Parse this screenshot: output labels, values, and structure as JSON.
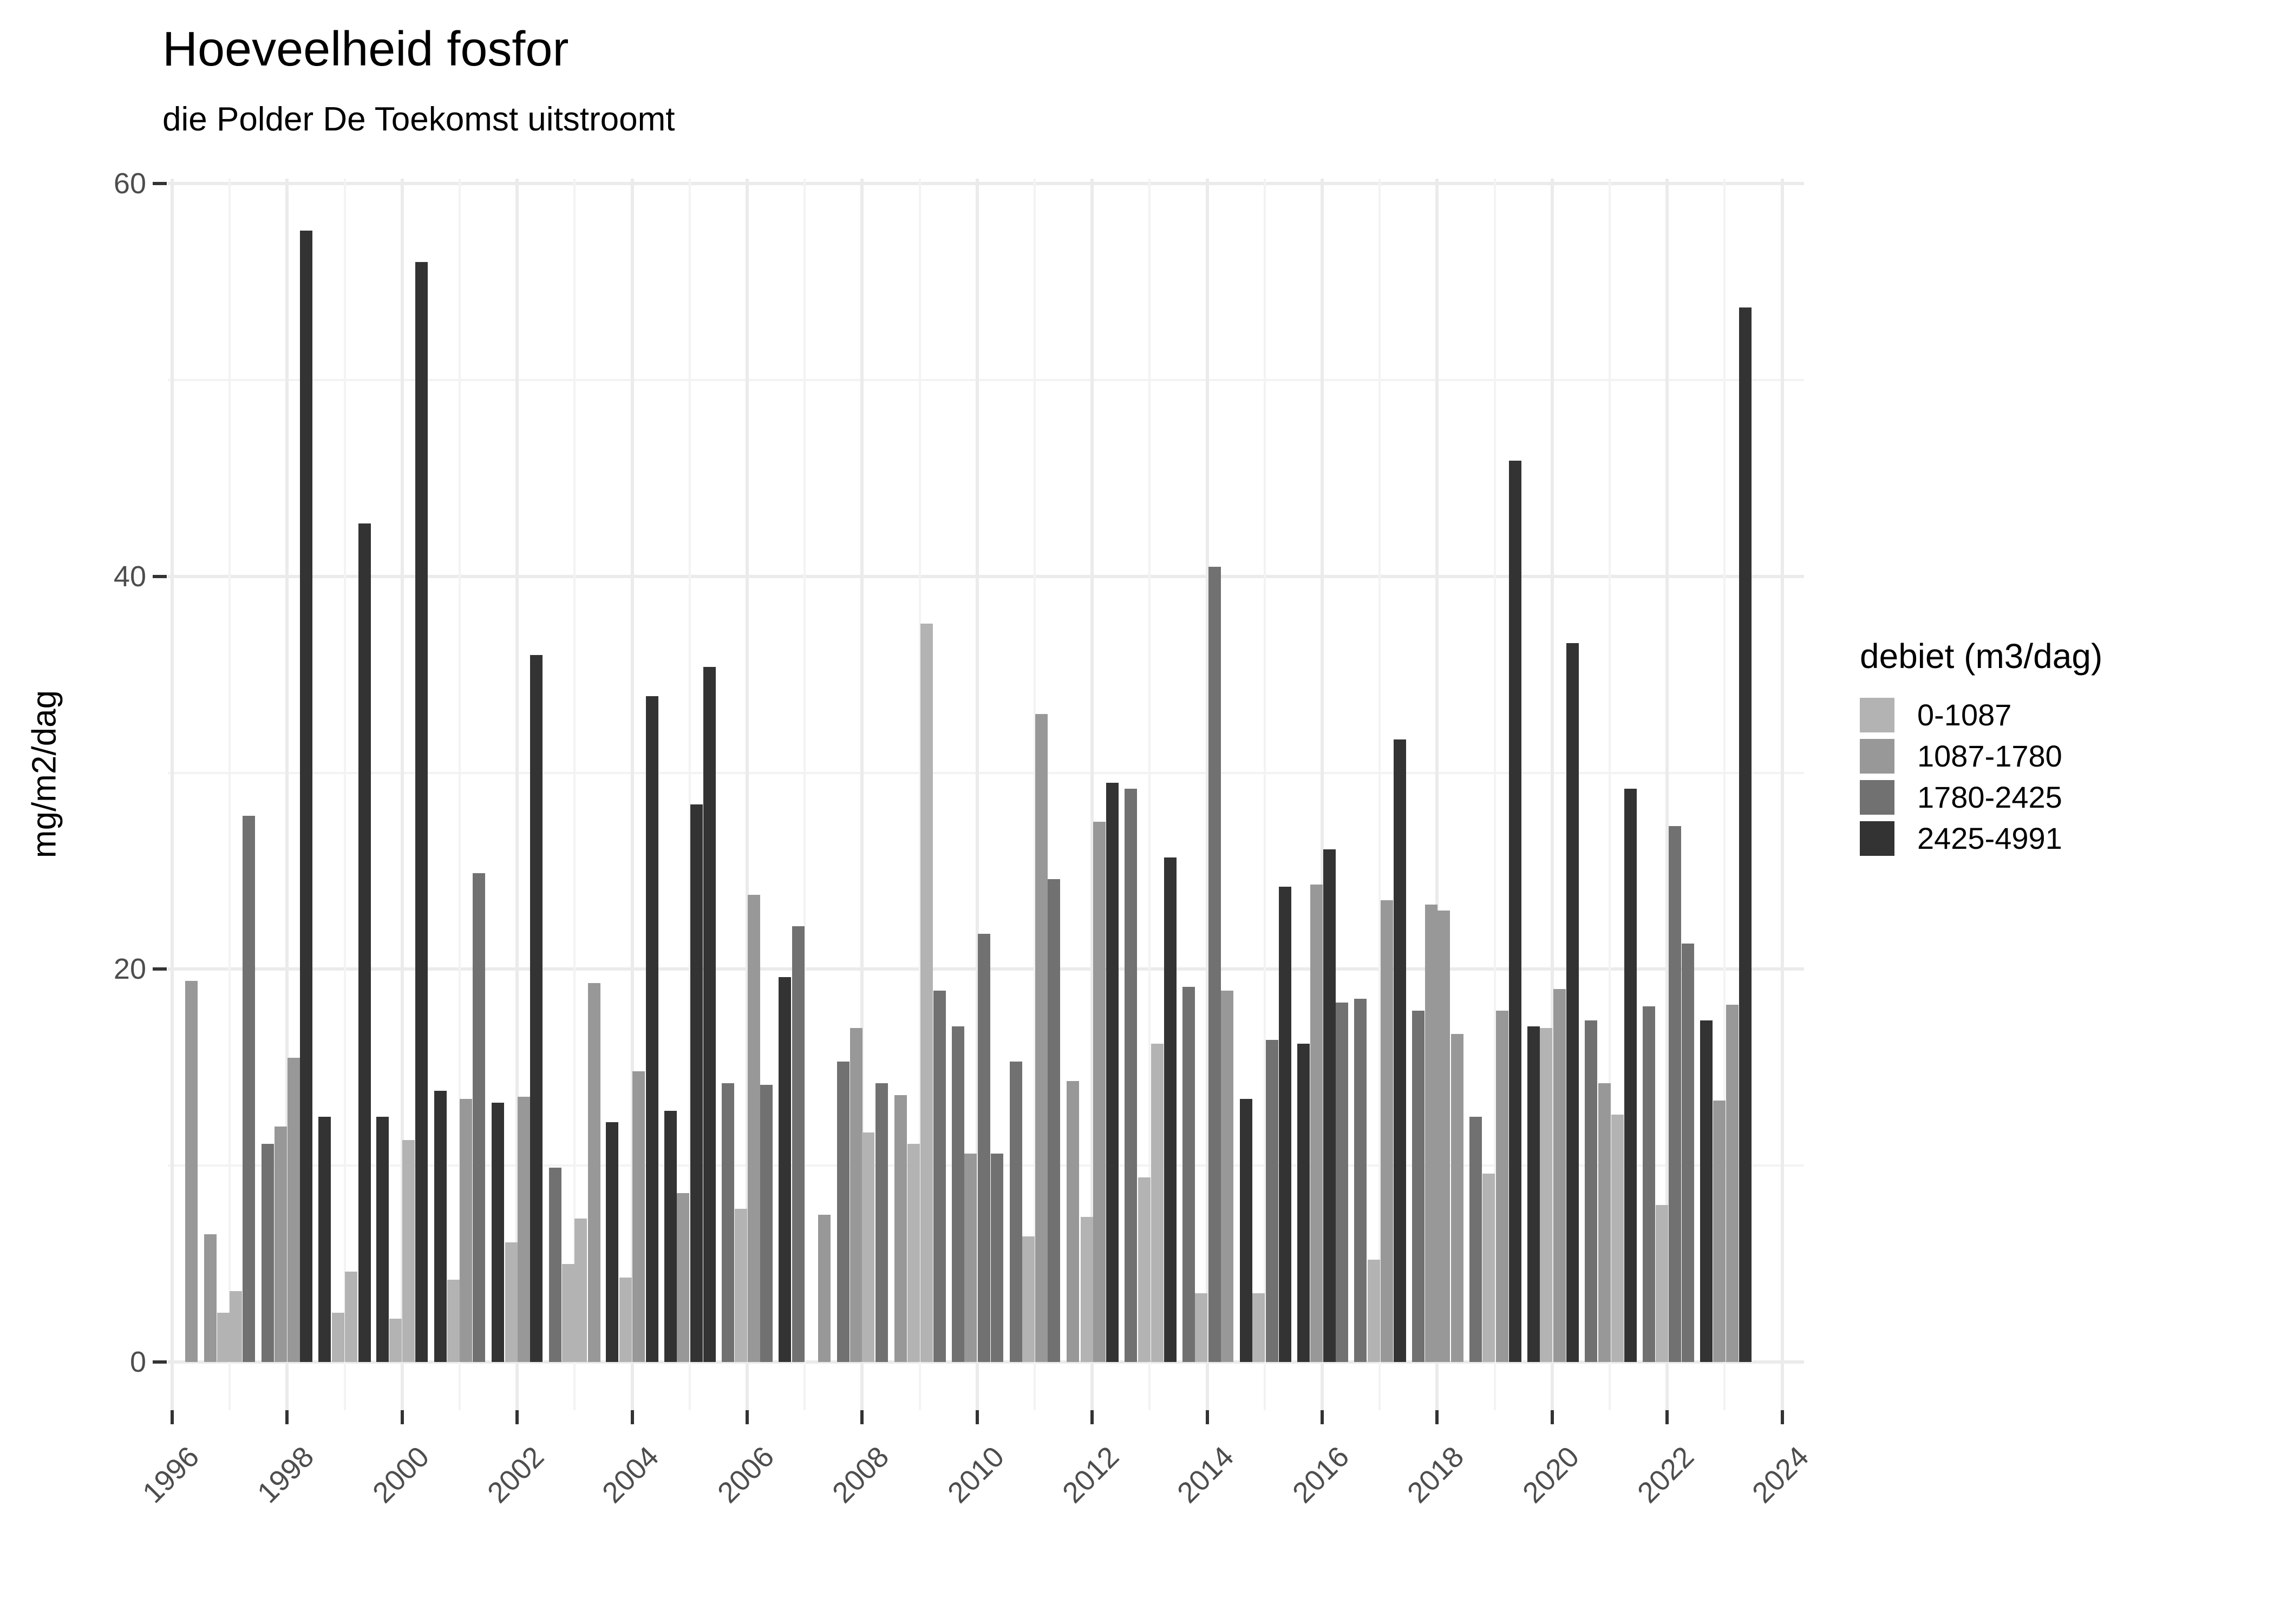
{
  "title": "Hoeveelheid fosfor",
  "subtitle": "die Polder De Toekomst uitstroomt",
  "legend": {
    "title": "debiet (m3/dag)",
    "items": [
      {
        "label": "0-1087",
        "color": "#B3B3B3"
      },
      {
        "label": "1087-1780",
        "color": "#989898"
      },
      {
        "label": "1780-2425",
        "color": "#717171"
      },
      {
        "label": "2425-4991",
        "color": "#333333"
      }
    ]
  },
  "chart_data": {
    "type": "bar",
    "title": "Hoeveelheid fosfor",
    "subtitle": "die Polder De Toekomst uitstroomt",
    "xlabel": "",
    "ylabel": "mg/m2/dag",
    "ylim": [
      0,
      60
    ],
    "xlim": [
      1996,
      2024.5
    ],
    "grid": "on",
    "legend_position": "right",
    "legend_title": "debiet (m3/dag)",
    "y_ticks": [
      0,
      20,
      40,
      60
    ],
    "y_minor": [
      10,
      30,
      50
    ],
    "x_ticks": [
      1996,
      1998,
      2000,
      2002,
      2004,
      2006,
      2008,
      2010,
      2012,
      2014,
      2016,
      2018,
      2020,
      2022,
      2024
    ],
    "x_minor": [
      1997,
      1999,
      2001,
      2003,
      2005,
      2007,
      2009,
      2011,
      2013,
      2015,
      2017,
      2019,
      2021,
      2023
    ],
    "bars": [
      {
        "x": 1996.23,
        "v": 19.4,
        "c": "1087-1780"
      },
      {
        "x": 1996.56,
        "v": 6.5,
        "c": "1087-1780"
      },
      {
        "x": 1996.78,
        "v": 2.5,
        "c": "0-1087"
      },
      {
        "x": 1997.0,
        "v": 3.6,
        "c": "0-1087"
      },
      {
        "x": 1997.22,
        "v": 27.8,
        "c": "1780-2425"
      },
      {
        "x": 1997.55,
        "v": 11.1,
        "c": "1780-2425"
      },
      {
        "x": 1997.78,
        "v": 12.0,
        "c": "1087-1780"
      },
      {
        "x": 1998.01,
        "v": 15.5,
        "c": "1087-1780"
      },
      {
        "x": 1998.22,
        "v": 57.6,
        "c": "2425-4991"
      },
      {
        "x": 1998.54,
        "v": 12.5,
        "c": "2425-4991"
      },
      {
        "x": 1998.78,
        "v": 2.5,
        "c": "0-1087"
      },
      {
        "x": 1999.0,
        "v": 4.6,
        "c": "0-1087"
      },
      {
        "x": 1999.24,
        "v": 42.7,
        "c": "2425-4991"
      },
      {
        "x": 1999.55,
        "v": 12.5,
        "c": "2425-4991"
      },
      {
        "x": 1999.78,
        "v": 2.2,
        "c": "0-1087"
      },
      {
        "x": 2000.0,
        "v": 11.3,
        "c": "0-1087"
      },
      {
        "x": 2000.23,
        "v": 56.0,
        "c": "2425-4991"
      },
      {
        "x": 2000.56,
        "v": 13.8,
        "c": "2425-4991"
      },
      {
        "x": 2000.78,
        "v": 4.2,
        "c": "0-1087"
      },
      {
        "x": 2001.0,
        "v": 13.4,
        "c": "1087-1780"
      },
      {
        "x": 2001.23,
        "v": 24.9,
        "c": "1780-2425"
      },
      {
        "x": 2001.56,
        "v": 13.2,
        "c": "2425-4991"
      },
      {
        "x": 2001.79,
        "v": 6.1,
        "c": "0-1087"
      },
      {
        "x": 2002.01,
        "v": 13.5,
        "c": "1087-1780"
      },
      {
        "x": 2002.22,
        "v": 36.0,
        "c": "2425-4991"
      },
      {
        "x": 2002.55,
        "v": 9.9,
        "c": "1780-2425"
      },
      {
        "x": 2002.78,
        "v": 5.0,
        "c": "0-1087"
      },
      {
        "x": 2003.0,
        "v": 7.3,
        "c": "0-1087"
      },
      {
        "x": 2003.23,
        "v": 19.3,
        "c": "1087-1780"
      },
      {
        "x": 2003.54,
        "v": 12.2,
        "c": "2425-4991"
      },
      {
        "x": 2003.78,
        "v": 4.3,
        "c": "0-1087"
      },
      {
        "x": 2004.0,
        "v": 14.8,
        "c": "1087-1780"
      },
      {
        "x": 2004.24,
        "v": 33.9,
        "c": "2425-4991"
      },
      {
        "x": 2004.56,
        "v": 12.8,
        "c": "2425-4991"
      },
      {
        "x": 2004.78,
        "v": 8.6,
        "c": "1087-1780"
      },
      {
        "x": 2005.01,
        "v": 28.4,
        "c": "2425-4991"
      },
      {
        "x": 2005.24,
        "v": 35.4,
        "c": "2425-4991"
      },
      {
        "x": 2005.56,
        "v": 14.2,
        "c": "1780-2425"
      },
      {
        "x": 2005.78,
        "v": 7.8,
        "c": "0-1087"
      },
      {
        "x": 2006.01,
        "v": 23.8,
        "c": "1087-1780"
      },
      {
        "x": 2006.23,
        "v": 14.1,
        "c": "1780-2425"
      },
      {
        "x": 2006.55,
        "v": 19.6,
        "c": "2425-4991"
      },
      {
        "x": 2006.78,
        "v": 22.2,
        "c": "1780-2425"
      },
      {
        "x": 2007.23,
        "v": 7.5,
        "c": "1087-1780"
      },
      {
        "x": 2007.56,
        "v": 15.3,
        "c": "1780-2425"
      },
      {
        "x": 2007.79,
        "v": 17.0,
        "c": "1087-1780"
      },
      {
        "x": 2008.0,
        "v": 11.7,
        "c": "0-1087"
      },
      {
        "x": 2008.23,
        "v": 14.2,
        "c": "1780-2425"
      },
      {
        "x": 2008.56,
        "v": 13.6,
        "c": "1087-1780"
      },
      {
        "x": 2008.79,
        "v": 11.1,
        "c": "0-1087"
      },
      {
        "x": 2009.01,
        "v": 37.6,
        "c": "0-1087"
      },
      {
        "x": 2009.24,
        "v": 18.9,
        "c": "1780-2425"
      },
      {
        "x": 2009.56,
        "v": 17.1,
        "c": "1780-2425"
      },
      {
        "x": 2009.78,
        "v": 10.6,
        "c": "1087-1780"
      },
      {
        "x": 2010.01,
        "v": 21.8,
        "c": "1780-2425"
      },
      {
        "x": 2010.24,
        "v": 10.6,
        "c": "1780-2425"
      },
      {
        "x": 2010.57,
        "v": 15.3,
        "c": "1780-2425"
      },
      {
        "x": 2010.78,
        "v": 6.4,
        "c": "0-1087"
      },
      {
        "x": 2011.01,
        "v": 33.0,
        "c": "1087-1780"
      },
      {
        "x": 2011.23,
        "v": 24.6,
        "c": "1780-2425"
      },
      {
        "x": 2011.56,
        "v": 14.3,
        "c": "1087-1780"
      },
      {
        "x": 2011.8,
        "v": 7.4,
        "c": "0-1087"
      },
      {
        "x": 2012.02,
        "v": 27.5,
        "c": "1087-1780"
      },
      {
        "x": 2012.24,
        "v": 29.5,
        "c": "2425-4991"
      },
      {
        "x": 2012.56,
        "v": 29.2,
        "c": "1780-2425"
      },
      {
        "x": 2012.8,
        "v": 9.4,
        "c": "0-1087"
      },
      {
        "x": 2013.02,
        "v": 16.2,
        "c": "0-1087"
      },
      {
        "x": 2013.25,
        "v": 25.7,
        "c": "2425-4991"
      },
      {
        "x": 2013.57,
        "v": 19.1,
        "c": "1780-2425"
      },
      {
        "x": 2013.79,
        "v": 3.5,
        "c": "0-1087"
      },
      {
        "x": 2014.02,
        "v": 40.5,
        "c": "1780-2425"
      },
      {
        "x": 2014.24,
        "v": 18.9,
        "c": "1087-1780"
      },
      {
        "x": 2014.57,
        "v": 13.4,
        "c": "2425-4991"
      },
      {
        "x": 2014.79,
        "v": 3.5,
        "c": "0-1087"
      },
      {
        "x": 2015.02,
        "v": 16.4,
        "c": "1780-2425"
      },
      {
        "x": 2015.25,
        "v": 24.2,
        "c": "2425-4991"
      },
      {
        "x": 2015.57,
        "v": 16.2,
        "c": "2425-4991"
      },
      {
        "x": 2015.79,
        "v": 24.3,
        "c": "1087-1780"
      },
      {
        "x": 2016.02,
        "v": 26.1,
        "c": "2425-4991"
      },
      {
        "x": 2016.24,
        "v": 18.3,
        "c": "1780-2425"
      },
      {
        "x": 2016.56,
        "v": 18.5,
        "c": "1780-2425"
      },
      {
        "x": 2016.79,
        "v": 5.2,
        "c": "0-1087"
      },
      {
        "x": 2017.02,
        "v": 23.5,
        "c": "1087-1780"
      },
      {
        "x": 2017.24,
        "v": 31.7,
        "c": "2425-4991"
      },
      {
        "x": 2017.56,
        "v": 17.9,
        "c": "1780-2425"
      },
      {
        "x": 2017.79,
        "v": 23.3,
        "c": "1087-1780"
      },
      {
        "x": 2018.01,
        "v": 23.0,
        "c": "1087-1780"
      },
      {
        "x": 2018.24,
        "v": 16.7,
        "c": "1087-1780"
      },
      {
        "x": 2018.56,
        "v": 12.5,
        "c": "1780-2425"
      },
      {
        "x": 2018.79,
        "v": 9.6,
        "c": "0-1087"
      },
      {
        "x": 2019.02,
        "v": 17.9,
        "c": "1087-1780"
      },
      {
        "x": 2019.25,
        "v": 45.9,
        "c": "2425-4991"
      },
      {
        "x": 2019.57,
        "v": 17.1,
        "c": "2425-4991"
      },
      {
        "x": 2019.79,
        "v": 17.0,
        "c": "0-1087"
      },
      {
        "x": 2020.02,
        "v": 19.0,
        "c": "1087-1780"
      },
      {
        "x": 2020.25,
        "v": 36.6,
        "c": "2425-4991"
      },
      {
        "x": 2020.57,
        "v": 17.4,
        "c": "1780-2425"
      },
      {
        "x": 2020.8,
        "v": 14.2,
        "c": "1087-1780"
      },
      {
        "x": 2021.03,
        "v": 12.6,
        "c": "0-1087"
      },
      {
        "x": 2021.25,
        "v": 29.2,
        "c": "2425-4991"
      },
      {
        "x": 2021.57,
        "v": 18.1,
        "c": "1780-2425"
      },
      {
        "x": 2021.8,
        "v": 8.0,
        "c": "0-1087"
      },
      {
        "x": 2022.03,
        "v": 27.3,
        "c": "1780-2425"
      },
      {
        "x": 2022.25,
        "v": 21.3,
        "c": "1780-2425"
      },
      {
        "x": 2022.57,
        "v": 17.4,
        "c": "2425-4991"
      },
      {
        "x": 2022.8,
        "v": 13.3,
        "c": "1087-1780"
      },
      {
        "x": 2023.02,
        "v": 18.2,
        "c": "1087-1780"
      },
      {
        "x": 2023.25,
        "v": 53.7,
        "c": "2425-4991"
      }
    ]
  }
}
